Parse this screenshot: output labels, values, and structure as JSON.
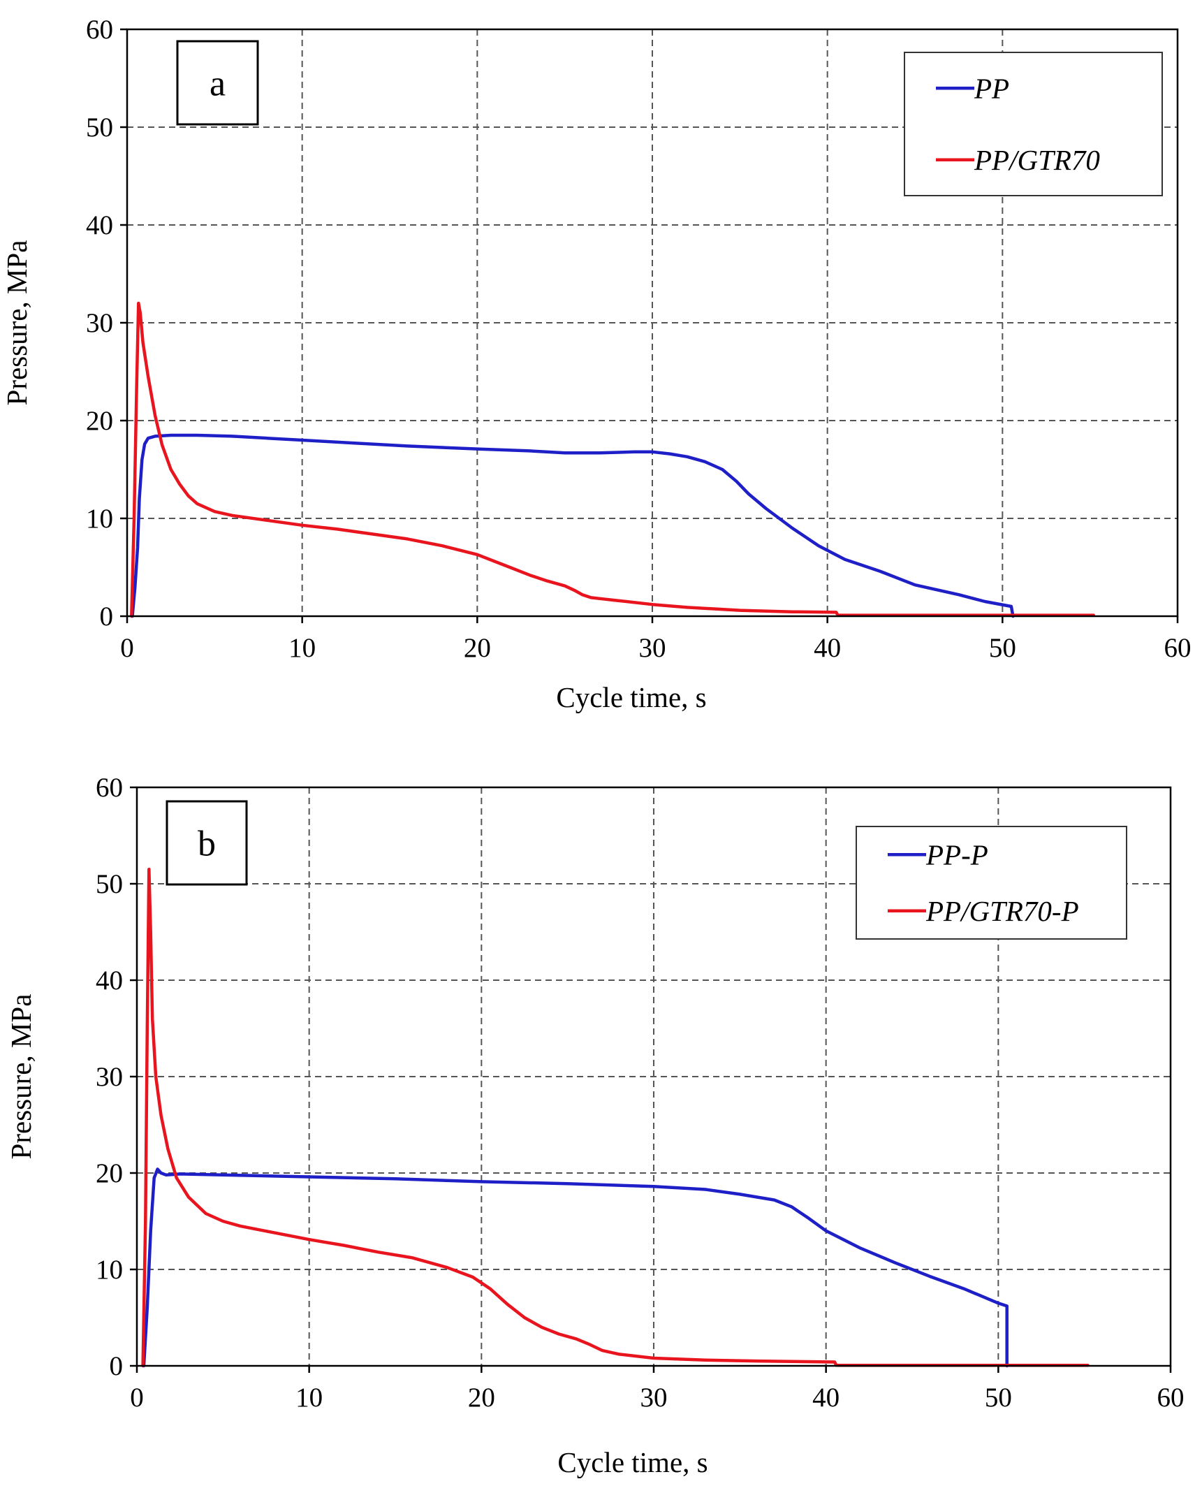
{
  "chart_data": [
    {
      "type": "line",
      "panel_label": "a",
      "xlabel": "Cycle time, s",
      "ylabel": "Pressure, MPa",
      "xlim": [
        0,
        60
      ],
      "ylim": [
        0,
        60
      ],
      "x_ticks": [
        "0",
        "10",
        "20",
        "30",
        "40",
        "50",
        "60"
      ],
      "y_ticks": [
        "0",
        "10",
        "20",
        "30",
        "40",
        "50",
        "60"
      ],
      "grid": true,
      "legend_position": "top-right",
      "series": [
        {
          "name": "PP",
          "color": "#1f1fc8",
          "points": [
            [
              0.3,
              0
            ],
            [
              0.45,
              3
            ],
            [
              0.6,
              7
            ],
            [
              0.7,
              12
            ],
            [
              0.85,
              16
            ],
            [
              1.0,
              17.6
            ],
            [
              1.2,
              18.2
            ],
            [
              1.6,
              18.4
            ],
            [
              2.5,
              18.5
            ],
            [
              4,
              18.5
            ],
            [
              6,
              18.4
            ],
            [
              8,
              18.2
            ],
            [
              10,
              18.0
            ],
            [
              13,
              17.7
            ],
            [
              16,
              17.4
            ],
            [
              20,
              17.1
            ],
            [
              23,
              16.9
            ],
            [
              25,
              16.7
            ],
            [
              27,
              16.7
            ],
            [
              29,
              16.8
            ],
            [
              30,
              16.8
            ],
            [
              31,
              16.6
            ],
            [
              32,
              16.3
            ],
            [
              33,
              15.8
            ],
            [
              34,
              15.0
            ],
            [
              34.8,
              13.8
            ],
            [
              35.5,
              12.5
            ],
            [
              36.5,
              11.0
            ],
            [
              38,
              9.0
            ],
            [
              39.5,
              7.2
            ],
            [
              41,
              5.8
            ],
            [
              43,
              4.6
            ],
            [
              45,
              3.2
            ],
            [
              47.5,
              2.2
            ],
            [
              49,
              1.5
            ],
            [
              50.5,
              1.0
            ],
            [
              50.6,
              0
            ]
          ]
        },
        {
          "name": "PP/GTR70",
          "color": "#e8141e",
          "points": [
            [
              0.25,
              0
            ],
            [
              0.4,
              10
            ],
            [
              0.55,
              24
            ],
            [
              0.65,
              32
            ],
            [
              0.75,
              31
            ],
            [
              0.9,
              28
            ],
            [
              1.2,
              24.5
            ],
            [
              1.6,
              20.5
            ],
            [
              2.0,
              17.5
            ],
            [
              2.5,
              15
            ],
            [
              3.0,
              13.5
            ],
            [
              3.5,
              12.3
            ],
            [
              4.0,
              11.5
            ],
            [
              5.0,
              10.7
            ],
            [
              6,
              10.3
            ],
            [
              8,
              9.8
            ],
            [
              10,
              9.3
            ],
            [
              12,
              8.9
            ],
            [
              14,
              8.4
            ],
            [
              16,
              7.9
            ],
            [
              18,
              7.2
            ],
            [
              20,
              6.3
            ],
            [
              21,
              5.6
            ],
            [
              22,
              4.9
            ],
            [
              23,
              4.2
            ],
            [
              24,
              3.6
            ],
            [
              25,
              3.1
            ],
            [
              25.6,
              2.6
            ],
            [
              26,
              2.2
            ],
            [
              26.5,
              1.9
            ],
            [
              27,
              1.8
            ],
            [
              28,
              1.6
            ],
            [
              30,
              1.2
            ],
            [
              32,
              0.9
            ],
            [
              35,
              0.6
            ],
            [
              38,
              0.45
            ],
            [
              40.5,
              0.4
            ],
            [
              40.6,
              0.1
            ],
            [
              45,
              0.1
            ],
            [
              50,
              0.1
            ],
            [
              55.2,
              0.1
            ]
          ]
        }
      ]
    },
    {
      "type": "line",
      "panel_label": "b",
      "xlabel": "Cycle time, s",
      "ylabel": "Pressure, MPa",
      "xlim": [
        0,
        60
      ],
      "ylim": [
        0,
        60
      ],
      "x_ticks": [
        "0",
        "10",
        "20",
        "30",
        "40",
        "50",
        "60"
      ],
      "y_ticks": [
        "0",
        "10",
        "20",
        "30",
        "40",
        "50",
        "60"
      ],
      "grid": true,
      "legend_position": "top-right",
      "series": [
        {
          "name": "PP-P",
          "color": "#1f1fc8",
          "points": [
            [
              0.4,
              0
            ],
            [
              0.6,
              6
            ],
            [
              0.8,
              14
            ],
            [
              1.0,
              19.5
            ],
            [
              1.2,
              20.4
            ],
            [
              1.4,
              20.0
            ],
            [
              1.7,
              19.8
            ],
            [
              2.5,
              19.9
            ],
            [
              5,
              19.8
            ],
            [
              10,
              19.6
            ],
            [
              15,
              19.4
            ],
            [
              20,
              19.1
            ],
            [
              25,
              18.9
            ],
            [
              30,
              18.6
            ],
            [
              33,
              18.3
            ],
            [
              35,
              17.8
            ],
            [
              37,
              17.2
            ],
            [
              38,
              16.5
            ],
            [
              39,
              15.3
            ],
            [
              40,
              14.0
            ],
            [
              42,
              12.2
            ],
            [
              44,
              10.7
            ],
            [
              46,
              9.3
            ],
            [
              48,
              8.0
            ],
            [
              50,
              6.5
            ],
            [
              50.5,
              6.2
            ],
            [
              50.5,
              0
            ]
          ]
        },
        {
          "name": "PP/GTR70-P",
          "color": "#e8141e",
          "points": [
            [
              0.35,
              0
            ],
            [
              0.5,
              15
            ],
            [
              0.6,
              35
            ],
            [
              0.7,
              51.5
            ],
            [
              0.8,
              45
            ],
            [
              0.9,
              36
            ],
            [
              1.1,
              30
            ],
            [
              1.4,
              26
            ],
            [
              1.8,
              22.5
            ],
            [
              2.3,
              19.5
            ],
            [
              3,
              17.5
            ],
            [
              4,
              15.8
            ],
            [
              5,
              15.0
            ],
            [
              6,
              14.5
            ],
            [
              8,
              13.8
            ],
            [
              10,
              13.1
            ],
            [
              12,
              12.5
            ],
            [
              14,
              11.8
            ],
            [
              16,
              11.2
            ],
            [
              18,
              10.2
            ],
            [
              19.5,
              9.2
            ],
            [
              20.5,
              8.0
            ],
            [
              21.5,
              6.4
            ],
            [
              22.5,
              5.0
            ],
            [
              23.5,
              4.0
            ],
            [
              24.5,
              3.3
            ],
            [
              25.5,
              2.8
            ],
            [
              26.3,
              2.2
            ],
            [
              27,
              1.6
            ],
            [
              28,
              1.2
            ],
            [
              30,
              0.8
            ],
            [
              33,
              0.6
            ],
            [
              36,
              0.5
            ],
            [
              38,
              0.45
            ],
            [
              40.5,
              0.4
            ],
            [
              40.6,
              0.05
            ],
            [
              45,
              0.05
            ],
            [
              50,
              0.05
            ],
            [
              55.2,
              0.05
            ]
          ]
        }
      ]
    }
  ]
}
